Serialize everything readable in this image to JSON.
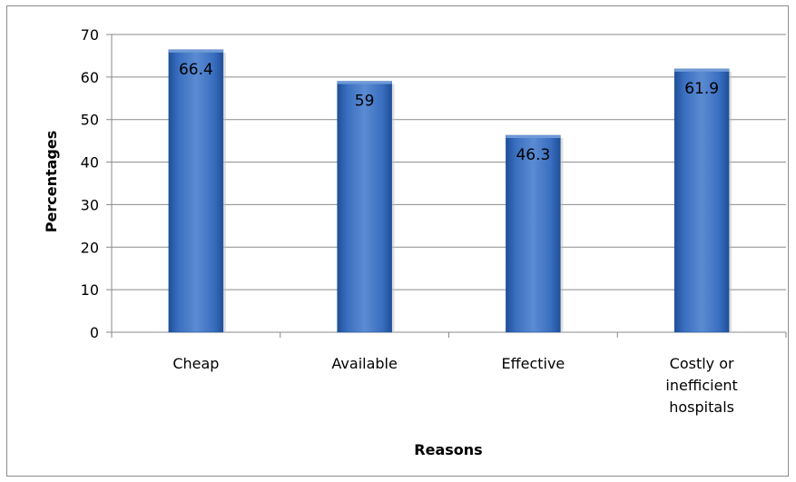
{
  "chart_data": {
    "type": "bar",
    "title": "",
    "xlabel": "Reasons",
    "ylabel": "Percentages",
    "categories": [
      [
        "Cheap"
      ],
      [
        "Available"
      ],
      [
        "Effective"
      ],
      [
        "Costly or",
        "inefficient",
        "hospitals"
      ]
    ],
    "values": [
      66.4,
      59,
      46.3,
      61.9
    ],
    "data_labels": [
      "66.4",
      "59",
      "46.3",
      "61.9"
    ],
    "ylim": [
      0,
      70
    ],
    "yticks": [
      0,
      10,
      20,
      30,
      40,
      50,
      60,
      70
    ],
    "grid": true,
    "legend": "none",
    "colors": {
      "bar": "#3a6fc0",
      "bar_light": "#6f9ad8",
      "bar_dark": "#1f4f98",
      "grid": "#8a8a8a",
      "axis": "#8a8a8a",
      "frame": "#8c8c8c"
    }
  }
}
